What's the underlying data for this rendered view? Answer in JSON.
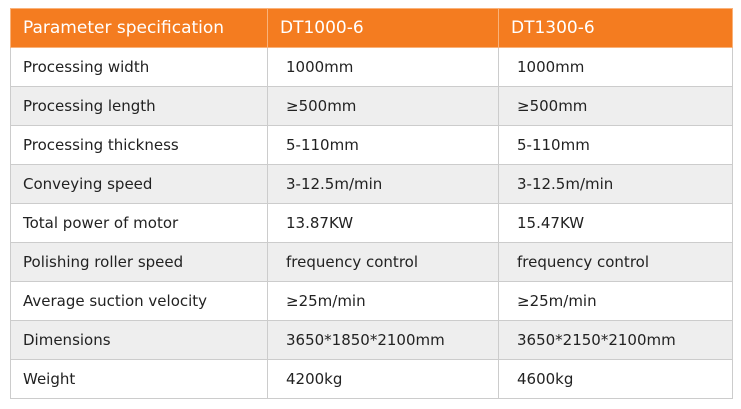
{
  "table": {
    "header": [
      "Parameter specification",
      "DT1000-6",
      "DT1300-6"
    ],
    "rows": [
      [
        "Processing width",
        "1000mm",
        "1000mm"
      ],
      [
        "Processing length",
        "≥500mm",
        "≥500mm"
      ],
      [
        "Processing thickness",
        "5-110mm",
        "5-110mm"
      ],
      [
        "Conveying speed",
        "3-12.5m/min",
        "3-12.5m/min"
      ],
      [
        "Total power of motor",
        "13.87KW",
        "15.47KW"
      ],
      [
        "Polishing roller speed",
        "frequency control",
        "frequency control"
      ],
      [
        "Average suction velocity",
        "≥25m/min",
        "≥25m/min"
      ],
      [
        "Dimensions",
        "3650*1850*2100mm",
        "3650*2150*2100mm"
      ],
      [
        "Weight",
        "4200kg",
        "4600kg"
      ]
    ]
  }
}
